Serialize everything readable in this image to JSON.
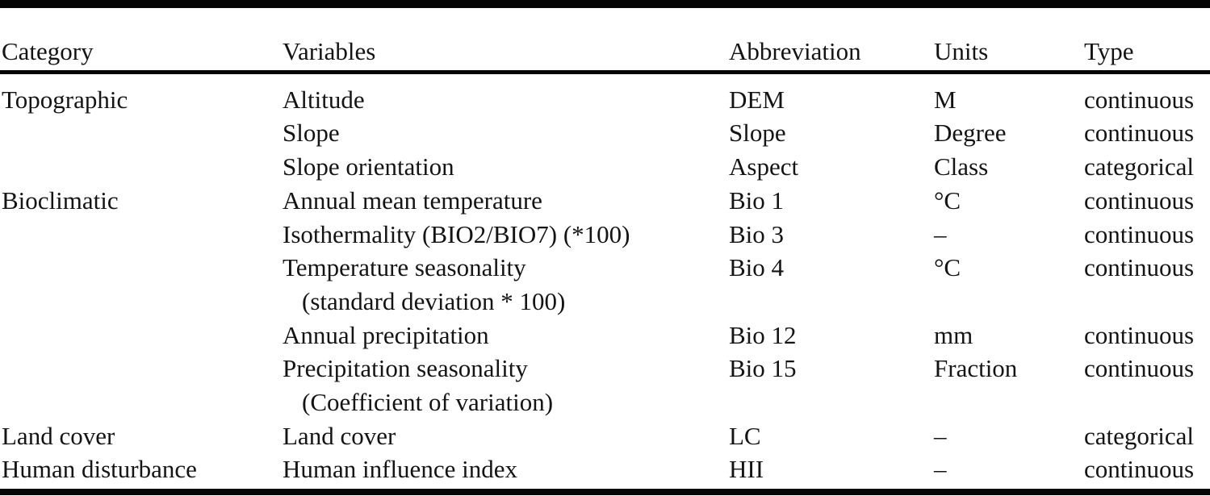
{
  "table": {
    "headers": {
      "category": "Category",
      "variables": "Variables",
      "abbreviation": "Abbreviation",
      "units": "Units",
      "type": "Type"
    },
    "rows": [
      {
        "category": "Topographic",
        "variable": "Altitude",
        "variable_line2": "",
        "abbreviation": "DEM",
        "units": "M",
        "type": "continuous"
      },
      {
        "category": "",
        "variable": "Slope",
        "variable_line2": "",
        "abbreviation": "Slope",
        "units": "Degree",
        "type": "continuous"
      },
      {
        "category": "",
        "variable": "Slope orientation",
        "variable_line2": "",
        "abbreviation": "Aspect",
        "units": "Class",
        "type": "categorical"
      },
      {
        "category": "Bioclimatic",
        "variable": "Annual mean temperature",
        "variable_line2": "",
        "abbreviation": "Bio 1",
        "units": "°C",
        "type": "continuous"
      },
      {
        "category": "",
        "variable": "Isothermality (BIO2/BIO7) (*100)",
        "variable_line2": "",
        "abbreviation": "Bio 3",
        "units": "–",
        "type": "continuous"
      },
      {
        "category": "",
        "variable": "Temperature seasonality",
        "variable_line2": "(standard deviation * 100)",
        "abbreviation": "Bio 4",
        "units": "°C",
        "type": "continuous"
      },
      {
        "category": "",
        "variable": "Annual precipitation",
        "variable_line2": "",
        "abbreviation": "Bio 12",
        "units": "mm",
        "type": "continuous"
      },
      {
        "category": "",
        "variable": "Precipitation seasonality",
        "variable_line2": "(Coefficient of variation)",
        "abbreviation": "Bio 15",
        "units": "Fraction",
        "type": "continuous"
      },
      {
        "category": "Land cover",
        "variable": "Land cover",
        "variable_line2": "",
        "abbreviation": "LC",
        "units": "–",
        "type": "categorical"
      },
      {
        "category": "Human disturbance",
        "variable": "Human influence index",
        "variable_line2": "",
        "abbreviation": "HII",
        "units": "–",
        "type": "continuous"
      }
    ],
    "colors": {
      "background": "#ffffff",
      "text": "#141414",
      "rule": "#050505"
    }
  }
}
